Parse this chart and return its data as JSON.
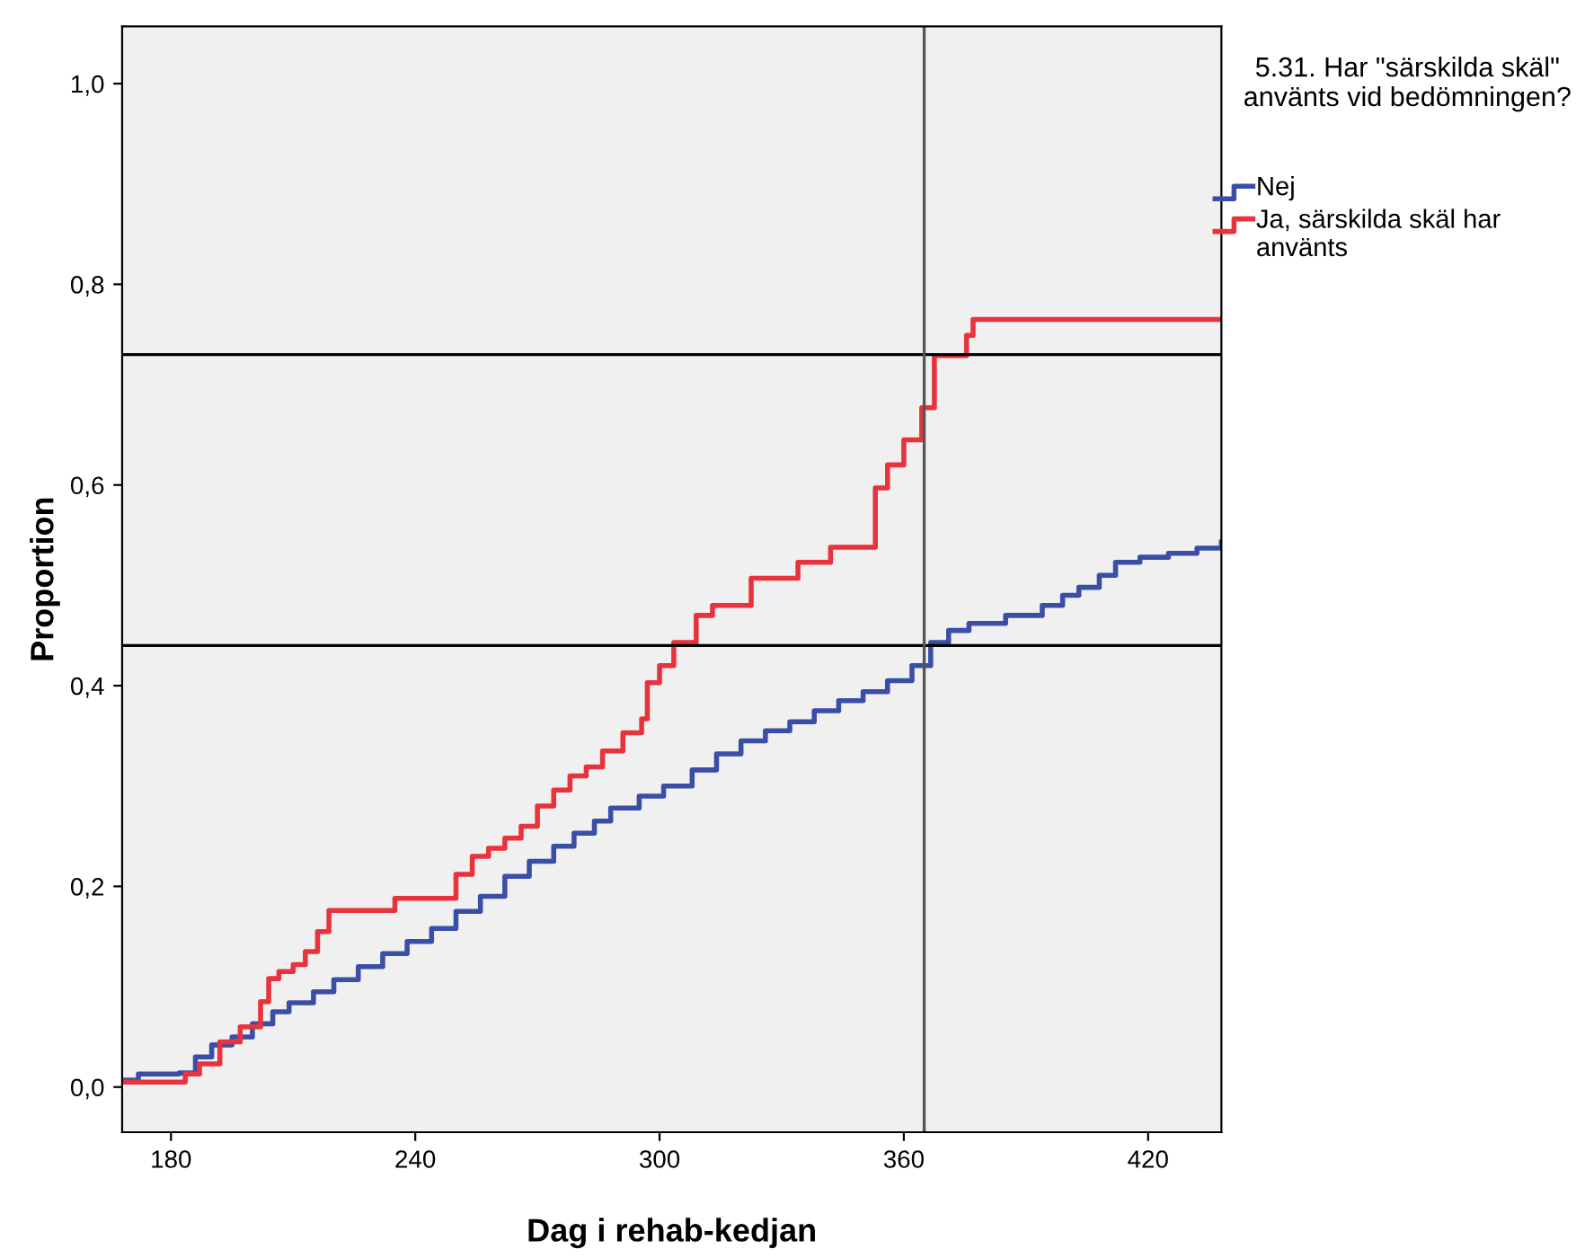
{
  "chart_data": {
    "type": "step",
    "xlabel": "Dag i rehab-kedjan",
    "ylabel": "Proportion",
    "legend_title": "5.31. Har \"särskilda skäl\" använts vid bedömningen?",
    "legend": "right",
    "grid": false,
    "xlim": [
      168,
      438
    ],
    "xticks": [
      180,
      240,
      300,
      360,
      420
    ],
    "ylim": [
      -0.045,
      1.057
    ],
    "yticks": [
      {
        "value": 0,
        "label": "0,0"
      },
      {
        "value": 0.2,
        "label": "0,2"
      },
      {
        "value": 0.4,
        "label": "0,4"
      },
      {
        "value": 0.6,
        "label": "0,6"
      },
      {
        "value": 0.8,
        "label": "0,8"
      },
      {
        "value": 1.0,
        "label": "1,0"
      }
    ],
    "series": [
      {
        "name": "Nej",
        "color": "#3a4ea6",
        "x": [
          168,
          172,
          182,
          186,
          190,
          195,
          200,
          205,
          209,
          215,
          220,
          226,
          232,
          238,
          244,
          250,
          256,
          262,
          268,
          274,
          279,
          284,
          288,
          295,
          301,
          308,
          314,
          320,
          326,
          332,
          338,
          344,
          350,
          356,
          362,
          366.6,
          371,
          376,
          385,
          394,
          399,
          403,
          408,
          412,
          418,
          425,
          432,
          438
        ],
        "values": [
          0.007,
          0.013,
          0.014,
          0.03,
          0.042,
          0.05,
          0.063,
          0.075,
          0.084,
          0.095,
          0.107,
          0.12,
          0.133,
          0.145,
          0.158,
          0.175,
          0.19,
          0.21,
          0.225,
          0.24,
          0.253,
          0.265,
          0.278,
          0.29,
          0.3,
          0.316,
          0.332,
          0.345,
          0.355,
          0.364,
          0.375,
          0.385,
          0.394,
          0.405,
          0.42,
          0.443,
          0.455,
          0.462,
          0.47,
          0.48,
          0.49,
          0.498,
          0.51,
          0.523,
          0.528,
          0.532,
          0.537,
          0.543
        ]
      },
      {
        "name": "Ja, särskilda skäl har använts",
        "color": "#e8323c",
        "x": [
          168,
          183.5,
          187,
          192,
          197,
          202,
          204,
          206.5,
          210,
          213,
          216,
          218.8,
          235,
          246,
          250,
          254,
          258,
          262,
          266,
          270,
          274,
          278,
          282,
          286,
          291,
          295.6,
          297,
          300,
          303.5,
          309,
          313,
          322.5,
          334,
          342,
          353,
          356,
          360,
          364.4,
          367.5,
          375.4,
          377,
          438
        ],
        "values": [
          0.005,
          0.013,
          0.023,
          0.045,
          0.06,
          0.085,
          0.108,
          0.115,
          0.122,
          0.135,
          0.155,
          0.176,
          0.188,
          0.188,
          0.212,
          0.23,
          0.238,
          0.248,
          0.26,
          0.28,
          0.296,
          0.31,
          0.319,
          0.335,
          0.353,
          0.367,
          0.403,
          0.42,
          0.443,
          0.47,
          0.48,
          0.507,
          0.523,
          0.538,
          0.597,
          0.62,
          0.645,
          0.677,
          0.729,
          0.749,
          0.765,
          0.765
        ]
      }
    ],
    "ref_lines": [
      {
        "axis": "y",
        "value": 0.73,
        "color": "#000000"
      },
      {
        "axis": "y",
        "value": 0.44,
        "color": "#000000"
      },
      {
        "axis": "x",
        "value": 365,
        "color": "#555555"
      }
    ]
  }
}
